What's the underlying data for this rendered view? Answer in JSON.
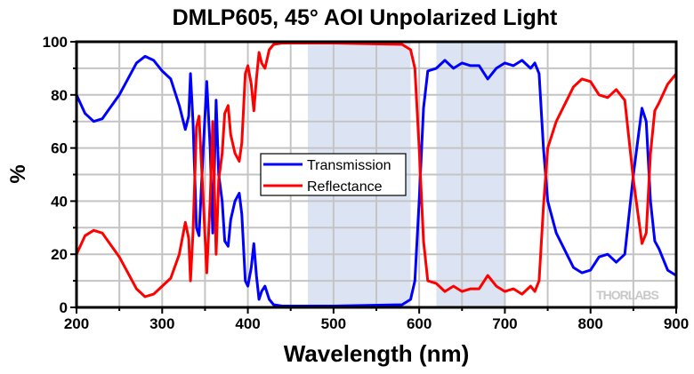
{
  "chart_data": {
    "type": "line",
    "title": "DMLP605, 45° AOI Unpolarized Light",
    "xlabel": "Wavelength (nm)",
    "ylabel": "%",
    "xlim": [
      200,
      900
    ],
    "ylim": [
      0,
      100
    ],
    "xticks": [
      200,
      300,
      400,
      500,
      600,
      700,
      800,
      900
    ],
    "yticks": [
      0,
      20,
      40,
      60,
      80,
      100
    ],
    "grid": true,
    "legend_position": "center-left",
    "shaded_regions": [
      [
        470,
        590
      ],
      [
        620,
        700
      ]
    ],
    "shade_color": "#dce4f4",
    "watermark": "THORLABS",
    "series": [
      {
        "name": "Transmission",
        "color": "#0000ff",
        "x": [
          200,
          210,
          220,
          230,
          250,
          270,
          280,
          290,
          300,
          310,
          320,
          327,
          331,
          333,
          336,
          340,
          343,
          348,
          352,
          356,
          359,
          363,
          366,
          370,
          373,
          377,
          380,
          385,
          390,
          393,
          397,
          400,
          404,
          407,
          410,
          413,
          416,
          420,
          425,
          430,
          440,
          500,
          580,
          590,
          595,
          600,
          605,
          610,
          620,
          630,
          640,
          650,
          660,
          670,
          680,
          690,
          700,
          710,
          720,
          730,
          735,
          740,
          745,
          750,
          760,
          780,
          790,
          800,
          810,
          820,
          830,
          840,
          850,
          860,
          865,
          870,
          875,
          880,
          890,
          900
        ],
        "y": [
          80,
          73,
          70,
          71,
          80,
          92,
          94.5,
          93,
          89,
          86,
          76,
          67,
          72,
          88,
          70,
          30,
          27,
          60,
          85,
          60,
          28,
          78,
          50,
          40,
          25,
          23,
          33,
          40,
          43,
          35,
          10,
          8,
          15,
          24,
          12,
          3,
          6,
          8,
          3,
          1,
          0.5,
          0.5,
          1,
          3,
          10,
          40,
          75,
          89,
          90,
          93,
          90,
          92,
          91,
          91,
          86,
          90,
          92,
          91,
          93,
          90,
          92,
          88,
          60,
          40,
          28,
          15,
          13,
          14,
          19,
          20,
          17,
          20,
          50,
          75,
          70,
          40,
          25,
          22,
          14,
          12
        ]
      },
      {
        "name": "Reflectance",
        "color": "#ff0000",
        "x": [
          200,
          210,
          220,
          230,
          250,
          270,
          280,
          290,
          300,
          310,
          320,
          327,
          331,
          333,
          336,
          340,
          343,
          348,
          352,
          356,
          359,
          363,
          366,
          370,
          373,
          377,
          380,
          385,
          390,
          393,
          397,
          400,
          404,
          407,
          410,
          413,
          416,
          420,
          425,
          430,
          440,
          500,
          580,
          590,
          595,
          600,
          605,
          610,
          620,
          630,
          640,
          650,
          660,
          670,
          680,
          690,
          700,
          710,
          720,
          730,
          735,
          740,
          745,
          750,
          760,
          780,
          790,
          800,
          810,
          820,
          830,
          840,
          850,
          860,
          865,
          870,
          875,
          880,
          890,
          900
        ],
        "y": [
          20,
          27,
          29,
          28,
          19,
          7,
          4,
          5,
          8,
          11,
          20,
          32,
          26,
          10,
          28,
          68,
          72,
          40,
          13,
          40,
          70,
          20,
          48,
          58,
          73,
          76,
          65,
          58,
          55,
          62,
          88,
          91,
          84,
          74,
          86,
          96,
          92,
          90,
          97,
          99,
          99.5,
          99.5,
          99,
          97,
          90,
          60,
          25,
          10,
          9,
          6,
          8,
          6,
          7,
          7,
          12,
          8,
          6,
          7,
          5,
          8,
          6,
          10,
          38,
          60,
          70,
          83,
          86,
          85,
          80,
          79,
          82,
          78,
          48,
          24,
          28,
          58,
          74,
          77,
          84,
          88
        ]
      }
    ]
  }
}
